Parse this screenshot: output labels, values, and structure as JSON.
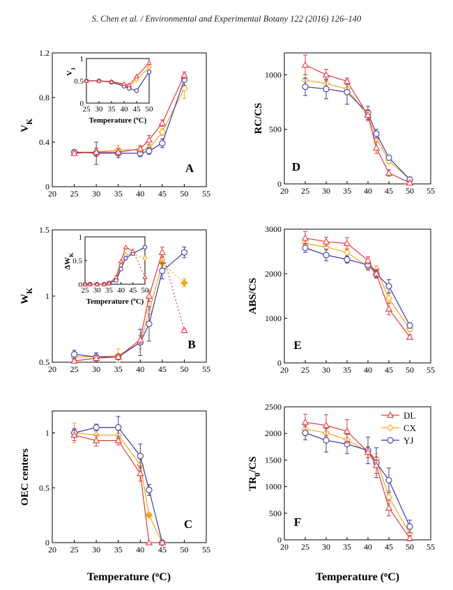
{
  "header": "S. Chen et al. / Environmental and Experimental Botany 122 (2016) 126–140",
  "figure": {
    "xlabel_bottom": "Temperature (°C)",
    "inset_xlabel": "Temperature (°C)"
  },
  "colors": {
    "DL": "#e8383d",
    "CX": "#f0a818",
    "YJ": "#3a3aa8"
  },
  "chart_data": [
    {
      "id": "A",
      "type": "line",
      "panel_label": "A",
      "ylabel": "VK",
      "xlim": [
        20,
        55
      ],
      "ylim": [
        0,
        1.2
      ],
      "x": [
        25,
        30,
        35,
        40,
        42,
        45,
        50
      ],
      "series": [
        {
          "name": "DL",
          "values": [
            0.3,
            0.31,
            0.31,
            0.34,
            0.42,
            0.57,
            1.0
          ],
          "err": [
            0.02,
            0.03,
            0.03,
            0.03,
            0.04,
            0.03,
            0.03
          ]
        },
        {
          "name": "CX",
          "values": [
            0.31,
            0.31,
            0.33,
            0.33,
            0.34,
            0.49,
            0.88
          ],
          "err": [
            0.02,
            0.04,
            0.04,
            0.03,
            0.03,
            0.03,
            0.09
          ]
        },
        {
          "name": "YJ",
          "values": [
            0.31,
            0.3,
            0.3,
            0.3,
            0.32,
            0.39,
            0.96
          ],
          "err": [
            0.02,
            0.1,
            0.04,
            0.03,
            0.03,
            0.04,
            0.05
          ]
        }
      ],
      "inset": {
        "ylabel": "VJ",
        "xlim": [
          25,
          50
        ],
        "ylim": [
          0,
          1
        ],
        "x": [
          25,
          30,
          35,
          40,
          42,
          45,
          50
        ],
        "series": [
          {
            "name": "DL",
            "values": [
              0.5,
              0.5,
              0.48,
              0.43,
              0.4,
              0.6,
              0.9
            ]
          },
          {
            "name": "CX",
            "values": [
              0.5,
              0.5,
              0.48,
              0.4,
              0.35,
              0.53,
              0.8
            ]
          },
          {
            "name": "YJ",
            "values": [
              0.5,
              0.5,
              0.47,
              0.38,
              0.33,
              0.28,
              0.7
            ]
          }
        ]
      }
    },
    {
      "id": "B",
      "type": "line",
      "panel_label": "B",
      "ylabel": "WK",
      "xlim": [
        20,
        55
      ],
      "ylim": [
        0.5,
        1.5
      ],
      "x": [
        25,
        30,
        35,
        40,
        42,
        45,
        50
      ],
      "series": [
        {
          "name": "DL",
          "values": [
            0.51,
            0.53,
            0.54,
            0.67,
            1.0,
            1.33,
            0.74
          ],
          "err": [
            0.01,
            0.02,
            0.02,
            0.03,
            0.04,
            0.04,
            0.01
          ],
          "dashed_from": 45
        },
        {
          "name": "CX",
          "values": [
            0.54,
            0.54,
            0.55,
            0.65,
            0.88,
            1.25,
            1.1
          ],
          "err": [
            0.02,
            0.03,
            0.05,
            0.05,
            0.08,
            0.07,
            0.03
          ],
          "dashed_from": 45
        },
        {
          "name": "YJ",
          "values": [
            0.56,
            0.54,
            0.54,
            0.65,
            0.79,
            1.19,
            1.33
          ],
          "err": [
            0.03,
            0.03,
            0.02,
            0.1,
            0.13,
            0.06,
            0.04
          ]
        }
      ],
      "inset": {
        "ylabel": "ΔWK",
        "xlim": [
          25,
          50
        ],
        "ylim": [
          0,
          1
        ],
        "x": [
          25,
          27,
          30,
          33,
          35,
          38,
          40,
          42,
          45,
          50
        ],
        "series": [
          {
            "name": "DL",
            "values": [
              0.0,
              0.0,
              0.0,
              0.0,
              0.02,
              0.15,
              0.48,
              0.78,
              0.7,
              0.15
            ],
            "dashed_from": 45
          },
          {
            "name": "CX",
            "values": [
              0.0,
              0.0,
              0.0,
              0.0,
              0.02,
              0.1,
              0.4,
              0.62,
              0.65,
              0.55
            ],
            "dashed_from": 45
          },
          {
            "name": "YJ",
            "values": [
              0.0,
              0.0,
              0.0,
              0.0,
              0.02,
              0.08,
              0.32,
              0.55,
              0.65,
              0.78
            ]
          }
        ]
      }
    },
    {
      "id": "C",
      "type": "line",
      "panel_label": "C",
      "ylabel": "OEC centers",
      "xlim": [
        20,
        55
      ],
      "ylim": [
        0,
        1.2
      ],
      "x": [
        25,
        30,
        35,
        40,
        42,
        45
      ],
      "series": [
        {
          "name": "DL",
          "values": [
            0.98,
            0.93,
            0.93,
            0.63,
            0.0,
            0.0
          ],
          "err": [
            0.05,
            0.05,
            0.04,
            0.07,
            0.0,
            0.0
          ]
        },
        {
          "name": "CX",
          "values": [
            1.0,
            0.98,
            0.98,
            0.71,
            0.25,
            0.0
          ],
          "err": [
            0.09,
            0.05,
            0.04,
            0.05,
            0.02,
            0.0
          ]
        },
        {
          "name": "YJ",
          "values": [
            1.0,
            1.05,
            1.05,
            0.79,
            0.48,
            0.0
          ],
          "err": [
            0.04,
            0.03,
            0.1,
            0.11,
            0.05,
            0.0
          ]
        }
      ]
    },
    {
      "id": "D",
      "type": "line",
      "panel_label": "D",
      "ylabel": "RC/CS",
      "xlim": [
        20,
        55
      ],
      "ylim": [
        0,
        1200
      ],
      "x": [
        25,
        30,
        35,
        40,
        42,
        45,
        50
      ],
      "series": [
        {
          "name": "DL",
          "values": [
            1090,
            1000,
            940,
            630,
            330,
            100,
            10
          ],
          "err": [
            90,
            50,
            30,
            50,
            50,
            30,
            15
          ]
        },
        {
          "name": "CX",
          "values": [
            950,
            920,
            870,
            620,
            420,
            210,
            40
          ],
          "err": [
            50,
            40,
            40,
            40,
            40,
            20,
            15
          ]
        },
        {
          "name": "YJ",
          "values": [
            890,
            870,
            840,
            650,
            460,
            240,
            40
          ],
          "err": [
            80,
            90,
            110,
            60,
            40,
            20,
            20
          ]
        }
      ]
    },
    {
      "id": "E",
      "type": "line",
      "panel_label": "E",
      "ylabel": "ABS/CS",
      "xlim": [
        20,
        55
      ],
      "ylim": [
        0,
        3000
      ],
      "x": [
        25,
        30,
        35,
        40,
        42,
        45,
        50
      ],
      "series": [
        {
          "name": "DL",
          "values": [
            2800,
            2720,
            2680,
            2300,
            2000,
            1210,
            580
          ],
          "err": [
            150,
            100,
            130,
            80,
            100,
            130,
            50
          ]
        },
        {
          "name": "CX",
          "values": [
            2680,
            2600,
            2480,
            2150,
            2100,
            1450,
            760
          ],
          "err": [
            100,
            80,
            80,
            80,
            80,
            100,
            60
          ]
        },
        {
          "name": "YJ",
          "values": [
            2580,
            2420,
            2320,
            2200,
            2000,
            1720,
            840
          ],
          "err": [
            100,
            130,
            80,
            100,
            80,
            150,
            60
          ]
        }
      ]
    },
    {
      "id": "F",
      "type": "line",
      "panel_label": "F",
      "ylabel": "TR0/CS",
      "xlim": [
        20,
        55
      ],
      "ylim": [
        0,
        2500
      ],
      "x": [
        25,
        30,
        35,
        40,
        42,
        45,
        50
      ],
      "series": [
        {
          "name": "DL",
          "values": [
            2210,
            2150,
            2040,
            1650,
            1400,
            600,
            30
          ],
          "err": [
            150,
            200,
            220,
            100,
            150,
            150,
            50
          ]
        },
        {
          "name": "CX",
          "values": [
            2080,
            2010,
            1880,
            1650,
            1520,
            800,
            120
          ],
          "err": [
            100,
            130,
            120,
            100,
            100,
            120,
            80
          ]
        },
        {
          "name": "YJ",
          "values": [
            2010,
            1870,
            1800,
            1680,
            1450,
            1120,
            250
          ],
          "err": [
            130,
            220,
            180,
            250,
            280,
            230,
            120
          ]
        }
      ],
      "legend": {
        "position": "top-right",
        "entries": [
          "DL",
          "CX",
          "YJ"
        ]
      }
    }
  ]
}
